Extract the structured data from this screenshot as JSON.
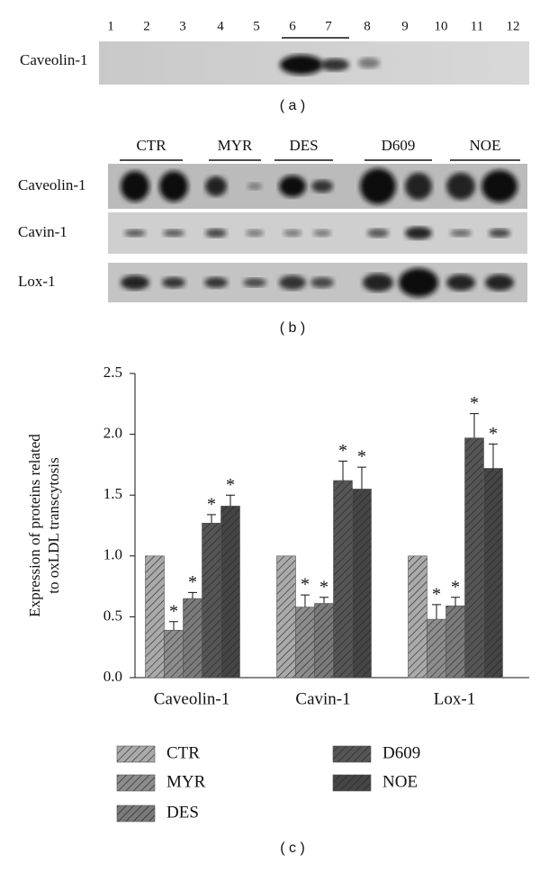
{
  "panel_a": {
    "lanes": [
      "1",
      "2",
      "3",
      "4",
      "5",
      "6",
      "7",
      "8",
      "9",
      "10",
      "11",
      "12"
    ],
    "row_label": "Caveolin-1",
    "caption": "( a )"
  },
  "panel_b": {
    "groups": [
      "CTR",
      "MYR",
      "DES",
      "D609",
      "NOE"
    ],
    "rows": [
      "Caveolin-1",
      "Cavin-1",
      "Lox-1"
    ],
    "caption": "( b )"
  },
  "chart_data": {
    "type": "bar",
    "y_label": [
      "Expression of proteins related",
      "to oxLDL transcytosis"
    ],
    "categories": [
      "Caveolin-1",
      "Cavin-1",
      "Lox-1"
    ],
    "series": [
      {
        "name": "CTR",
        "color": "#aaaaaa",
        "values": [
          1,
          1,
          1
        ]
      },
      {
        "name": "MYR",
        "color": "#8c8c8c",
        "values": [
          0.39,
          0.58,
          0.48
        ],
        "errors": [
          0.07,
          0.1,
          0.12
        ],
        "significance": [
          "*",
          "*",
          "*"
        ]
      },
      {
        "name": "DES",
        "color": "#7a7a7a",
        "values": [
          0.65,
          0.61,
          0.59
        ],
        "errors": [
          0.05,
          0.05,
          0.07
        ],
        "significance": [
          "*",
          "*",
          "*"
        ]
      },
      {
        "name": "D609",
        "color": "#555555",
        "values": [
          1.27,
          1.62,
          1.97
        ],
        "errors": [
          0.07,
          0.16,
          0.2
        ],
        "significance": [
          "*",
          "*",
          "*"
        ]
      },
      {
        "name": "NOE",
        "color": "#454545",
        "values": [
          1.41,
          1.55,
          1.72
        ],
        "errors": [
          0.09,
          0.18,
          0.2
        ],
        "significance": [
          "*",
          "*",
          "*"
        ]
      }
    ],
    "ylim": [
      0,
      2.5
    ],
    "yticks": [
      {
        "value": 0,
        "label": "0.0"
      },
      0.5,
      {
        "value": 1,
        "label": "1.0"
      },
      1.5,
      {
        "value": 2,
        "label": "2.0"
      },
      2.5
    ],
    "caption": "( c )"
  }
}
